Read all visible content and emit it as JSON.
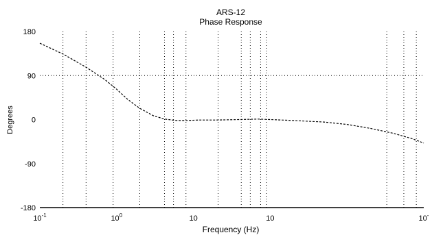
{
  "chart_data": {
    "type": "line",
    "title": "ARS-12",
    "subtitle": "Phase Response",
    "xlabel": "Frequency (Hz)",
    "ylabel": "Degrees",
    "x_scale": "log",
    "xlim": [
      0.1,
      10000
    ],
    "ylim": [
      -180,
      180
    ],
    "y_ticks": [
      {
        "value": 180,
        "label": "180"
      },
      {
        "value": 90,
        "label": "90"
      },
      {
        "value": 0,
        "label": "0"
      },
      {
        "value": -90,
        "label": "-90"
      },
      {
        "value": -180,
        "label": "-180"
      }
    ],
    "x_ticks": [
      {
        "value": 0.1,
        "base": "10",
        "exp": "-1"
      },
      {
        "value": 1,
        "base": "10",
        "exp": "0"
      },
      {
        "value": 10,
        "base": "10",
        "exp": ""
      },
      {
        "value": 100,
        "base": "10",
        "exp": ""
      },
      {
        "value": 10000,
        "base": "10",
        "exp": "-"
      }
    ],
    "x_gridlines": [
      0.2,
      0.4,
      0.9,
      2,
      4.2,
      5.5,
      8,
      21,
      42,
      55,
      75,
      90,
      3300,
      5500,
      8000
    ],
    "y_gridlines": [
      90
    ],
    "grid": true,
    "series": [
      {
        "style": "dashed",
        "color": "#000000",
        "x": [
          0.1,
          0.2,
          0.4,
          0.7,
          1,
          1.4,
          2,
          3,
          4.2,
          6,
          8,
          12,
          20,
          40,
          70,
          100,
          200,
          500,
          1000,
          2000,
          4000,
          7000,
          10000
        ],
        "y": [
          156,
          134,
          107,
          82,
          62,
          41,
          23,
          8,
          1,
          -2,
          -2,
          -1,
          -1,
          0,
          1,
          0,
          -2,
          -5,
          -10,
          -18,
          -28,
          -39,
          -48
        ]
      }
    ]
  },
  "colors": {
    "background": "#ffffff",
    "grid": "#000000",
    "line": "#000000"
  }
}
